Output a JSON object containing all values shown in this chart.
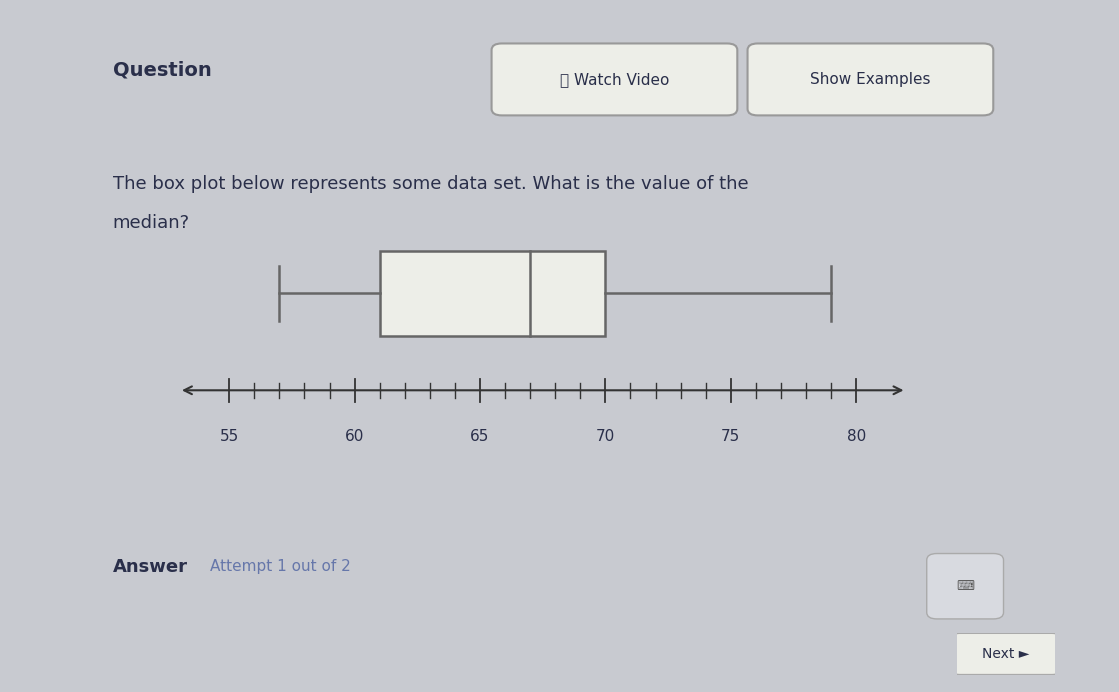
{
  "min_val": 57,
  "q1": 61,
  "median": 67,
  "q3": 70,
  "max_val": 79,
  "axis_min": 53,
  "axis_max": 82,
  "axis_ticks": [
    55,
    60,
    65,
    70,
    75,
    80
  ],
  "title_text_line1": "The box plot below represents some data set. What is the value of the",
  "title_text_line2": "median?",
  "question_label": "Question",
  "watch_video_label": "Ⓣ Watch Video",
  "show_examples_label": "Show Examples",
  "answer_label": "Answer",
  "attempt_label": "Attempt 1 out of 2",
  "next_label": "Next ►",
  "outer_bg": "#c8cad0",
  "panel_bg": "#edeee8",
  "box_edge_color": "#666666",
  "box_face_color": "#edeee8",
  "axis_color": "#333333",
  "text_color": "#2a2f4a",
  "button_bg": "#edeee8",
  "button_border": "#999999"
}
